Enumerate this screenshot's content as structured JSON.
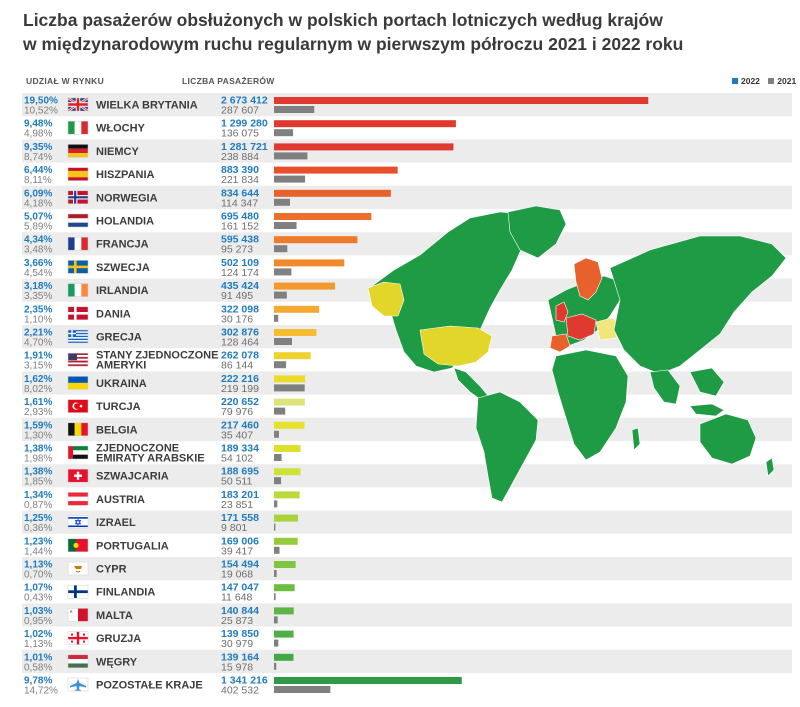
{
  "title": {
    "line1": "Liczba pasażerów obsłużonych w polskich portach lotniczych według krajów",
    "line2": "w międzynarodowym ruchu regularnym w pierwszym półroczu 2021 i 2022 roku"
  },
  "headers": {
    "share": "UDZIAŁ W RYNKU",
    "passengers": "LICZBA PASAŻERÓW"
  },
  "legend": [
    {
      "label": "2022",
      "color": "#1f7bbf"
    },
    {
      "label": "2021",
      "color": "#808080"
    }
  ],
  "chart_data": {
    "type": "bar",
    "title": "Liczba pasażerów obsłużonych w polskich portach lotniczych według krajów w międzynarodowym ruchu regularnym w pierwszym półroczu 2021 i 2022 roku",
    "legend_position": "top-right",
    "series": [
      {
        "name": "2022",
        "values": [
          2673412,
          1299280,
          1281721,
          883390,
          834644,
          695480,
          595438,
          502109,
          435424,
          322098,
          302876,
          262078,
          222216,
          220652,
          217460,
          189334,
          188695,
          183201,
          171558,
          169006,
          154494,
          147047,
          140844,
          139850,
          139164,
          1341216
        ]
      },
      {
        "name": "2021",
        "values": [
          287607,
          136075,
          238884,
          221834,
          114347,
          161152,
          95273,
          124174,
          91495,
          30176,
          128464,
          86144,
          219199,
          79976,
          35407,
          54102,
          50511,
          23851,
          9801,
          39417,
          19068,
          11648,
          25873,
          30979,
          15978,
          402532
        ]
      }
    ],
    "rows": [
      {
        "share2022": "19,50%",
        "share2021": "10,52%",
        "country": "WIELKA BRYTANIA",
        "v2022": "2 673 412",
        "v2021": "287 607",
        "color": "#e03a30",
        "flag": "uk-flag-icon"
      },
      {
        "share2022": "9,48%",
        "share2021": "4,98%",
        "country": "WŁOCHY",
        "v2022": "1 299 280",
        "v2021": "136 075",
        "color": "#e03a30",
        "flag": "italy-flag-icon"
      },
      {
        "share2022": "9,35%",
        "share2021": "8,74%",
        "country": "NIEMCY",
        "v2022": "1 281 721",
        "v2021": "238 884",
        "color": "#e03a30",
        "flag": "germany-flag-icon"
      },
      {
        "share2022": "6,44%",
        "share2021": "8,11%",
        "country": "HISZPANIA",
        "v2022": "883 390",
        "v2021": "221 834",
        "color": "#e8502b",
        "flag": "spain-flag-icon"
      },
      {
        "share2022": "6,09%",
        "share2021": "4,18%",
        "country": "NORWEGIA",
        "v2022": "834 644",
        "v2021": "114 347",
        "color": "#e8602b",
        "flag": "norway-flag-icon"
      },
      {
        "share2022": "5,07%",
        "share2021": "5,89%",
        "country": "HOLANDIA",
        "v2022": "695 480",
        "v2021": "161 152",
        "color": "#ec6f2a",
        "flag": "netherlands-flag-icon"
      },
      {
        "share2022": "4,34%",
        "share2021": "3,48%",
        "country": "FRANCJA",
        "v2022": "595 438",
        "v2021": "95 273",
        "color": "#ee7b2a",
        "flag": "france-flag-icon"
      },
      {
        "share2022": "3,66%",
        "share2021": "4,54%",
        "country": "SZWECJA",
        "v2022": "502 109",
        "v2021": "124 174",
        "color": "#f08a2c",
        "flag": "sweden-flag-icon"
      },
      {
        "share2022": "3,18%",
        "share2021": "3,35%",
        "country": "IRLANDIA",
        "v2022": "435 424",
        "v2021": "91 495",
        "color": "#f3982f",
        "flag": "ireland-flag-icon"
      },
      {
        "share2022": "2,35%",
        "share2021": "1,10%",
        "country": "DANIA",
        "v2022": "322 098",
        "v2021": "30 176",
        "color": "#f5a832",
        "flag": "denmark-flag-icon"
      },
      {
        "share2022": "2,21%",
        "share2021": "4,70%",
        "country": "GRECJA",
        "v2022": "302 876",
        "v2021": "128 464",
        "color": "#f5bd30",
        "flag": "greece-flag-icon"
      },
      {
        "share2022": "1,91%",
        "share2021": "3,15%",
        "country": "STANY ZJEDNOCZONE AMERYKI",
        "v2022": "262 078",
        "v2021": "86 144",
        "color": "#efd22d",
        "flag": "usa-flag-icon"
      },
      {
        "share2022": "1,62%",
        "share2021": "8,02%",
        "country": "UKRAINA",
        "v2022": "222 216",
        "v2021": "219 199",
        "color": "#ecdc2a",
        "flag": "ukraine-flag-icon"
      },
      {
        "share2022": "1,61%",
        "share2021": "2,93%",
        "country": "TURCJA",
        "v2022": "220 652",
        "v2021": "79 976",
        "color": "#dde47a",
        "flag": "turkey-flag-icon"
      },
      {
        "share2022": "1,59%",
        "share2021": "1,30%",
        "country": "BELGIA",
        "v2022": "217 460",
        "v2021": "35 407",
        "color": "#e5e12c",
        "flag": "belgium-flag-icon"
      },
      {
        "share2022": "1,38%",
        "share2021": "1,98%",
        "country": "ZJEDNOCZONE EMIRATY ARABSKIE",
        "v2022": "189 334",
        "v2021": "54 102",
        "color": "#dfe02e",
        "flag": "uae-flag-icon"
      },
      {
        "share2022": "1,38%",
        "share2021": "1,85%",
        "country": "SZWAJCARIA",
        "v2022": "188 695",
        "v2021": "50 511",
        "color": "#cde137",
        "flag": "switzerland-flag-icon"
      },
      {
        "share2022": "1,34%",
        "share2021": "0,87%",
        "country": "AUSTRIA",
        "v2022": "183 201",
        "v2021": "23 851",
        "color": "#b9da3a",
        "flag": "austria-flag-icon"
      },
      {
        "share2022": "1,25%",
        "share2021": "0,36%",
        "country": "IZRAEL",
        "v2022": "171 558",
        "v2021": "9 801",
        "color": "#a8d33c",
        "flag": "israel-flag-icon"
      },
      {
        "share2022": "1,23%",
        "share2021": "1,44%",
        "country": "PORTUGALIA",
        "v2022": "169 006",
        "v2021": "39 417",
        "color": "#94cc3e",
        "flag": "portugal-flag-icon"
      },
      {
        "share2022": "1,13%",
        "share2021": "0,70%",
        "country": "CYPR",
        "v2022": "154 494",
        "v2021": "19 068",
        "color": "#7fc540",
        "flag": "cyprus-flag-icon"
      },
      {
        "share2022": "1,07%",
        "share2021": "0,43%",
        "country": "FINLANDIA",
        "v2022": "147 047",
        "v2021": "11 648",
        "color": "#6cbd42",
        "flag": "finland-flag-icon"
      },
      {
        "share2022": "1,03%",
        "share2021": "0,95%",
        "country": "MALTA",
        "v2022": "140 844",
        "v2021": "25 873",
        "color": "#5cb645",
        "flag": "malta-flag-icon"
      },
      {
        "share2022": "1,02%",
        "share2021": "1,13%",
        "country": "GRUZJA",
        "v2022": "139 850",
        "v2021": "30 979",
        "color": "#4fae46",
        "flag": "georgia-flag-icon"
      },
      {
        "share2022": "1,01%",
        "share2021": "0,58%",
        "country": "WĘGRY",
        "v2022": "139 164",
        "v2021": "15 978",
        "color": "#44a847",
        "flag": "hungary-flag-icon"
      },
      {
        "share2022": "9,78%",
        "share2021": "14,72%",
        "country": "POZOSTAŁE KRAJE",
        "v2022": "1 341 216",
        "v2021": "402 532",
        "color": "#2f9a45",
        "flag": "airplane-icon"
      }
    ],
    "map_colors": {
      "land": "#1f9a45",
      "uk": "#e03a30",
      "europe_mid": "#e8602b",
      "yellow": "#e2d62b",
      "light": "#f1e67a"
    }
  }
}
